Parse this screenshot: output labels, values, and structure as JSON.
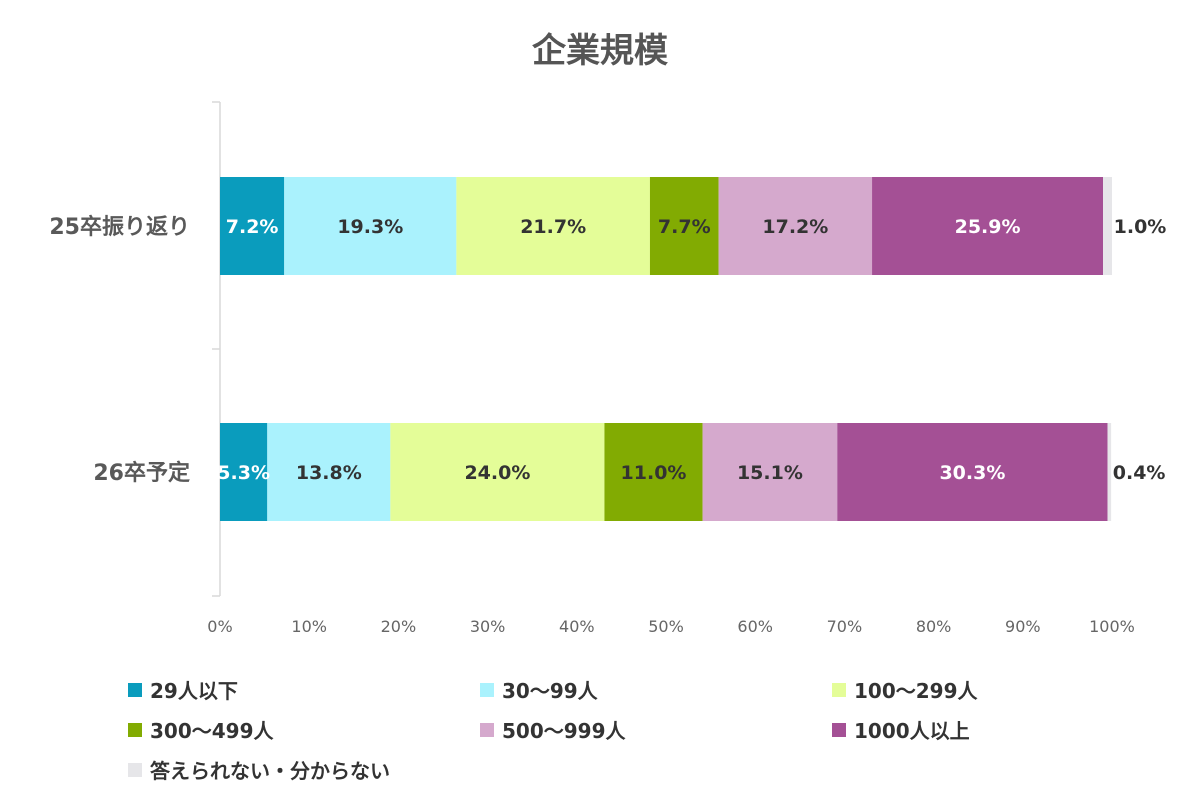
{
  "chart_data": {
    "type": "bar",
    "orientation": "horizontal",
    "stacked": true,
    "percent": true,
    "title": "企業規模",
    "categories": [
      "25卒振り返り",
      "26卒予定"
    ],
    "series": [
      {
        "name": "29人以下",
        "color": "#0a9cbd",
        "values": [
          7.2,
          5.3
        ],
        "labels": [
          "7.2%",
          "5.3%"
        ],
        "label_color": "#ffffff"
      },
      {
        "name": "30〜99人",
        "color": "#aaf2fd",
        "values": [
          19.3,
          13.8
        ],
        "labels": [
          "19.3%",
          "13.8%"
        ],
        "label_color": "#333333"
      },
      {
        "name": "100〜299人",
        "color": "#e4fd98",
        "values": [
          21.7,
          24.0
        ],
        "labels": [
          "21.7%",
          "24.0%"
        ],
        "label_color": "#333333"
      },
      {
        "name": "300〜499人",
        "color": "#82ab02",
        "values": [
          7.7,
          11.0
        ],
        "labels": [
          "7.7%",
          "11.0%"
        ],
        "label_color": "#333333"
      },
      {
        "name": "500〜999人",
        "color": "#d5a9cd",
        "values": [
          17.2,
          15.1
        ],
        "labels": [
          "17.2%",
          "15.1%"
        ],
        "label_color": "#333333"
      },
      {
        "name": "1000人以上",
        "color": "#a45095",
        "values": [
          25.9,
          30.3
        ],
        "labels": [
          "25.9%",
          "30.3%"
        ],
        "label_color": "#ffffff"
      },
      {
        "name": "答えられない・分からない",
        "color": "#e6e6e9",
        "values": [
          1.0,
          0.4
        ],
        "labels": [
          "1.0%",
          "0.4%"
        ],
        "label_color": "#333333"
      }
    ],
    "xlim": [
      0,
      100
    ],
    "xticks": [
      "0%",
      "10%",
      "20%",
      "30%",
      "40%",
      "50%",
      "60%",
      "70%",
      "80%",
      "90%",
      "100%"
    ],
    "grid": false,
    "legend_position": "bottom"
  }
}
